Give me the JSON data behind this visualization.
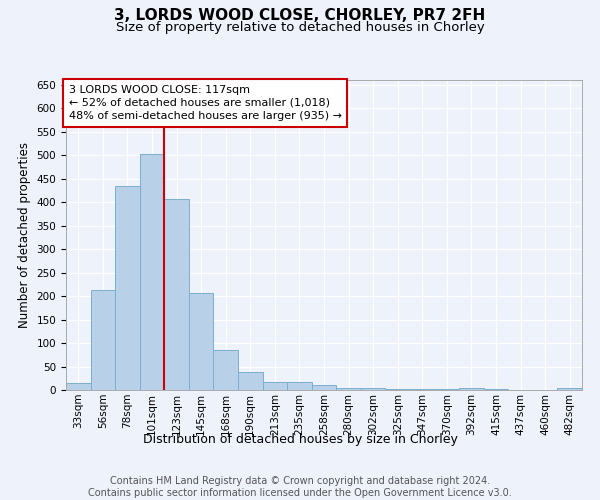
{
  "title1": "3, LORDS WOOD CLOSE, CHORLEY, PR7 2FH",
  "title2": "Size of property relative to detached houses in Chorley",
  "xlabel": "Distribution of detached houses by size in Chorley",
  "ylabel": "Number of detached properties",
  "categories": [
    "33sqm",
    "56sqm",
    "78sqm",
    "101sqm",
    "123sqm",
    "145sqm",
    "168sqm",
    "190sqm",
    "213sqm",
    "235sqm",
    "258sqm",
    "280sqm",
    "302sqm",
    "325sqm",
    "347sqm",
    "370sqm",
    "392sqm",
    "415sqm",
    "437sqm",
    "460sqm",
    "482sqm"
  ],
  "values": [
    15,
    213,
    435,
    503,
    407,
    207,
    85,
    38,
    18,
    18,
    10,
    5,
    5,
    3,
    3,
    3,
    5,
    3,
    1,
    1,
    5
  ],
  "bar_color": "#b8d0e8",
  "bar_edge_color": "#7aaed4",
  "background_color": "#eef2fb",
  "grid_color": "#ffffff",
  "vline_color": "#cc0000",
  "annotation_box_text": [
    "3 LORDS WOOD CLOSE: 117sqm",
    "← 52% of detached houses are smaller (1,018)",
    "48% of semi-detached houses are larger (935) →"
  ],
  "annotation_box_color": "#ffffff",
  "annotation_box_edge_color": "#cc0000",
  "ylim": [
    0,
    660
  ],
  "yticks": [
    0,
    50,
    100,
    150,
    200,
    250,
    300,
    350,
    400,
    450,
    500,
    550,
    600,
    650
  ],
  "footer_line1": "Contains HM Land Registry data © Crown copyright and database right 2024.",
  "footer_line2": "Contains public sector information licensed under the Open Government Licence v3.0.",
  "title1_fontsize": 11,
  "title2_fontsize": 9.5,
  "xlabel_fontsize": 9,
  "ylabel_fontsize": 8.5,
  "tick_fontsize": 7.5,
  "annotation_fontsize": 8,
  "footer_fontsize": 7
}
